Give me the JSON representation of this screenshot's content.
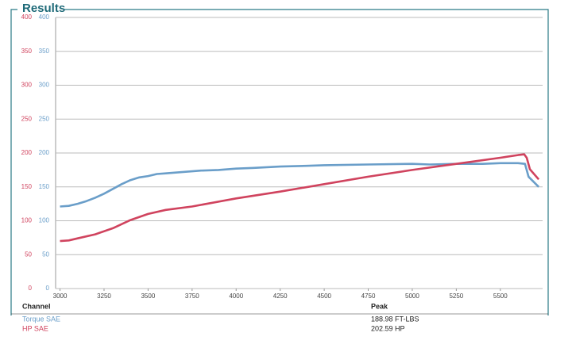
{
  "chart_data": {
    "type": "line",
    "title": "Results",
    "xlim": [
      2975,
      5740
    ],
    "xticks": [
      3000,
      3250,
      3500,
      3750,
      4000,
      4250,
      4500,
      4750,
      5000,
      5250,
      5500
    ],
    "ylim": [
      0,
      400
    ],
    "yticks": [
      0,
      50,
      100,
      150,
      200,
      250,
      300,
      350,
      400
    ],
    "ytick_color": "#d0435e",
    "y2lim": [
      0,
      400
    ],
    "y2ticks": [
      0,
      50,
      100,
      150,
      200,
      250,
      300,
      350,
      400
    ],
    "y2tick_color": "#6a9ec9",
    "grid": true,
    "table": {
      "columns": [
        "Channel",
        "Peak"
      ]
    },
    "series": [
      {
        "name": "Torque SAE",
        "color": "#6a9ec9",
        "axis": "y2",
        "peak": "188.98 FT-LBS",
        "x": [
          3000,
          3050,
          3100,
          3150,
          3200,
          3250,
          3300,
          3350,
          3400,
          3450,
          3500,
          3550,
          3600,
          3650,
          3700,
          3750,
          3800,
          3900,
          4000,
          4100,
          4250,
          4400,
          4500,
          4750,
          5000,
          5100,
          5250,
          5400,
          5500,
          5600,
          5640,
          5660,
          5718
        ],
        "values": [
          121,
          122,
          125,
          129,
          134,
          140,
          147,
          154,
          160,
          164,
          166,
          169,
          170,
          171,
          172,
          173,
          174,
          175,
          177,
          178,
          180,
          181,
          182,
          183,
          184,
          183,
          184,
          184,
          185,
          185,
          184,
          165,
          150
        ]
      },
      {
        "name": "HP SAE",
        "color": "#d0435e",
        "peak": "202.59 HP",
        "x": [
          3000,
          3050,
          3100,
          3200,
          3300,
          3400,
          3500,
          3600,
          3750,
          4000,
          4250,
          4500,
          4750,
          5000,
          5250,
          5500,
          5600,
          5636,
          5650,
          5668,
          5718
        ],
        "values": [
          70,
          71,
          74,
          80,
          89,
          101,
          110,
          116,
          121,
          133,
          143,
          154,
          165,
          175,
          184,
          193,
          197,
          198,
          193,
          176,
          161
        ]
      }
    ]
  }
}
